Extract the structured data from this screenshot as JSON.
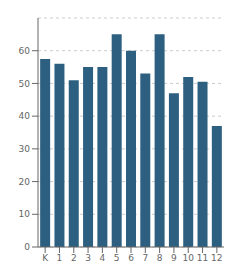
{
  "chart_data": {
    "type": "bar",
    "categories": [
      "K",
      "1",
      "2",
      "3",
      "4",
      "5",
      "6",
      "7",
      "8",
      "9",
      "10",
      "11",
      "12"
    ],
    "values": [
      57.5,
      56,
      51,
      55,
      55,
      65,
      60,
      53,
      65,
      47,
      52,
      50.5,
      37
    ],
    "color": "#2d6080",
    "ylim": [
      0,
      70
    ],
    "yticks": [
      0,
      10,
      20,
      30,
      40,
      50,
      60
    ],
    "grid": true
  }
}
